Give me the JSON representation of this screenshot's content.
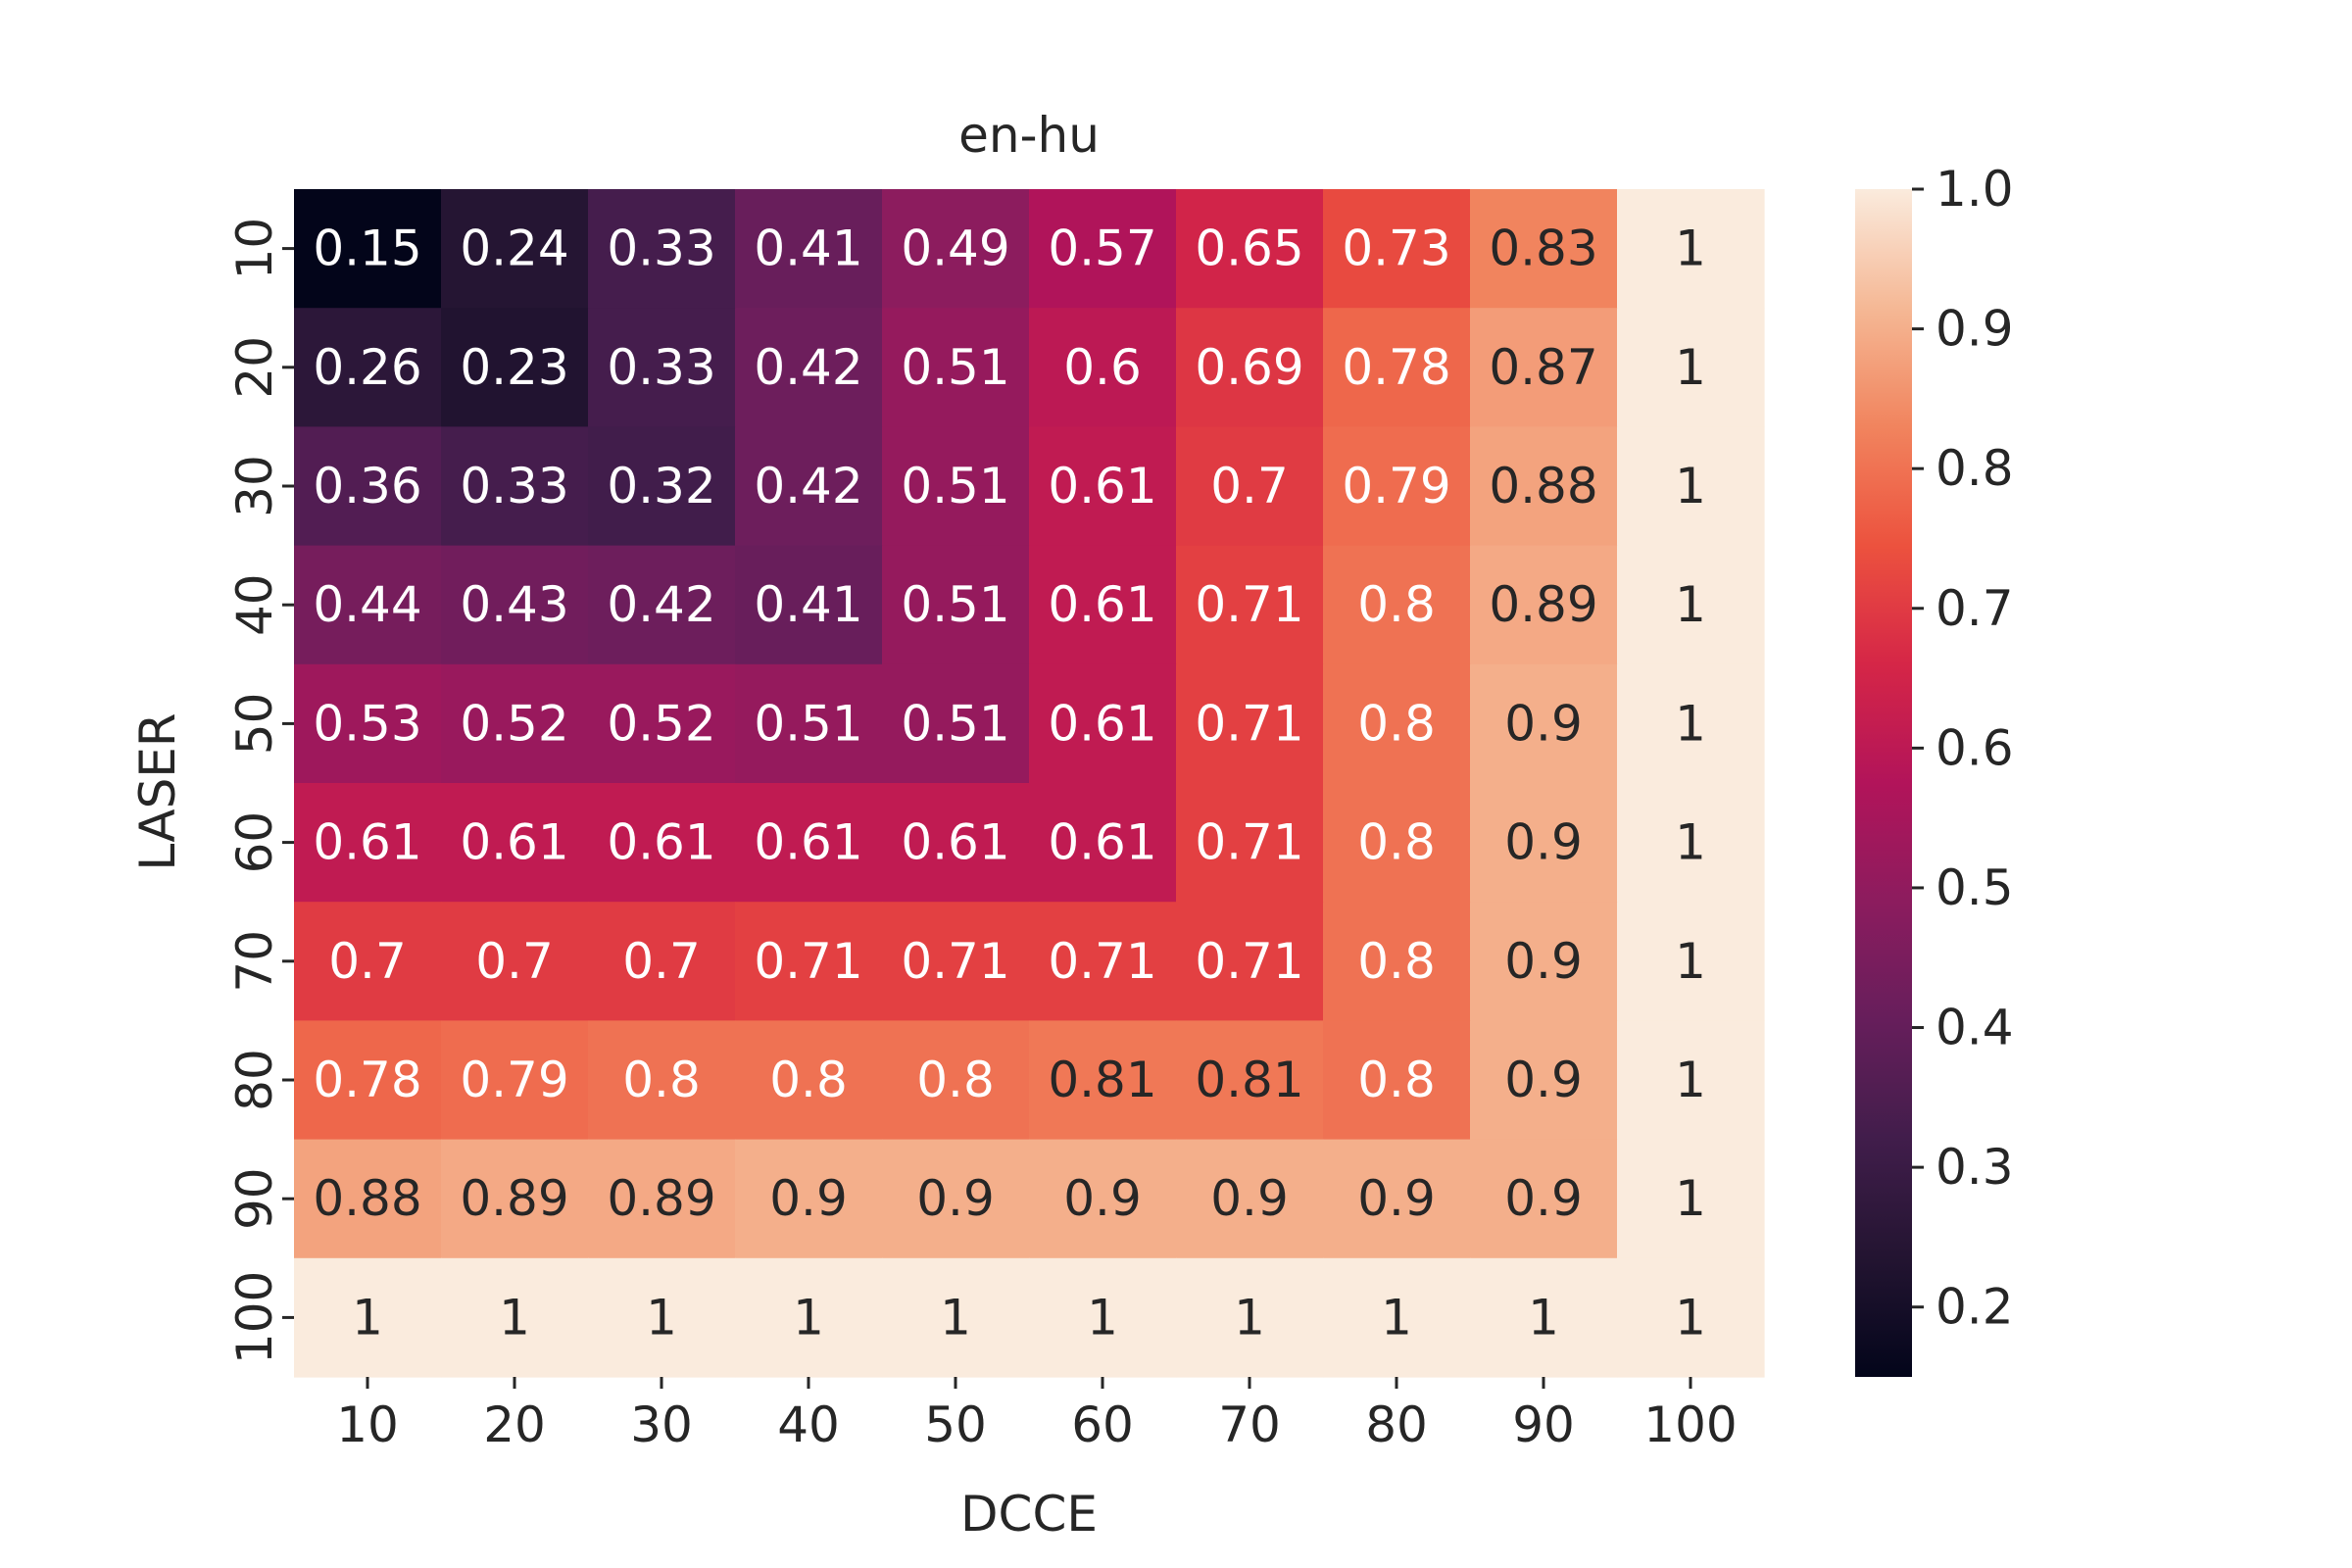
{
  "chart_data": {
    "type": "heatmap",
    "title": "en-hu",
    "xlabel": "DCCE",
    "ylabel": "LASER",
    "x_categories": [
      "10",
      "20",
      "30",
      "40",
      "50",
      "60",
      "70",
      "80",
      "90",
      "100"
    ],
    "y_categories": [
      "10",
      "20",
      "30",
      "40",
      "50",
      "60",
      "70",
      "80",
      "90",
      "100"
    ],
    "values": [
      [
        0.15,
        0.24,
        0.33,
        0.41,
        0.49,
        0.57,
        0.65,
        0.73,
        0.83,
        1
      ],
      [
        0.26,
        0.23,
        0.33,
        0.42,
        0.51,
        0.6,
        0.69,
        0.78,
        0.87,
        1
      ],
      [
        0.36,
        0.33,
        0.32,
        0.42,
        0.51,
        0.61,
        0.7,
        0.79,
        0.88,
        1
      ],
      [
        0.44,
        0.43,
        0.42,
        0.41,
        0.51,
        0.61,
        0.71,
        0.8,
        0.89,
        1
      ],
      [
        0.53,
        0.52,
        0.52,
        0.51,
        0.51,
        0.61,
        0.71,
        0.8,
        0.9,
        1
      ],
      [
        0.61,
        0.61,
        0.61,
        0.61,
        0.61,
        0.61,
        0.71,
        0.8,
        0.9,
        1
      ],
      [
        0.7,
        0.7,
        0.7,
        0.71,
        0.71,
        0.71,
        0.71,
        0.8,
        0.9,
        1
      ],
      [
        0.78,
        0.79,
        0.8,
        0.8,
        0.8,
        0.81,
        0.81,
        0.8,
        0.9,
        1
      ],
      [
        0.88,
        0.89,
        0.89,
        0.9,
        0.9,
        0.9,
        0.9,
        0.9,
        0.9,
        1
      ],
      [
        1,
        1,
        1,
        1,
        1,
        1,
        1,
        1,
        1,
        1
      ]
    ],
    "colorbar": {
      "range": [
        0.15,
        1.0
      ],
      "ticks": [
        0.2,
        0.3,
        0.4,
        0.5,
        0.6,
        0.7,
        0.8,
        0.9,
        1.0
      ],
      "tick_labels": [
        "0.2",
        "0.3",
        "0.4",
        "0.5",
        "0.6",
        "0.7",
        "0.8",
        "0.9",
        "1.0"
      ]
    },
    "colormap": "rocket",
    "grid": false,
    "legend": "colorbar-right"
  }
}
